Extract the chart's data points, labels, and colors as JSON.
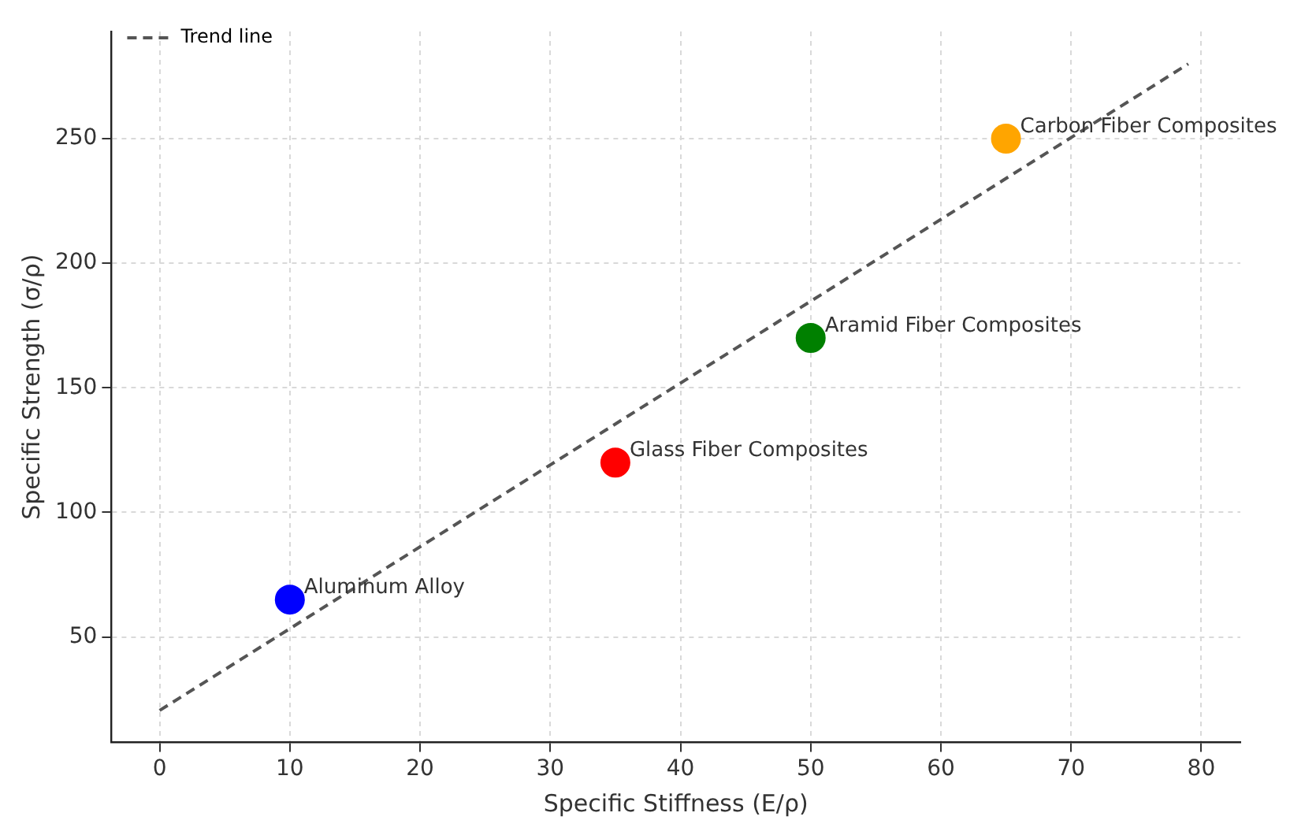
{
  "chart_data": {
    "type": "scatter",
    "xlabel": "Specific Stiffness (E/ρ)",
    "ylabel": "Specific Strength (σ/ρ)",
    "xlim": [
      -3.7,
      83
    ],
    "ylim": [
      7.7,
      293
    ],
    "xticks": [
      0,
      10,
      20,
      30,
      40,
      50,
      60,
      70,
      80
    ],
    "yticks": [
      50,
      100,
      150,
      200,
      250
    ],
    "grid": true,
    "legend": "top left",
    "series": [
      {
        "type": "scatter",
        "x": [
          10,
          35,
          50,
          65
        ],
        "values": [
          65,
          120,
          170,
          250
        ],
        "colors": [
          "#0000ff",
          "#ff0000",
          "#008000",
          "#ffa500"
        ],
        "marker": "circle"
      },
      {
        "type": "line",
        "name": "Trend line",
        "x": [
          0,
          79
        ],
        "values": [
          20.5,
          280
        ],
        "color": "#555555",
        "line_style": "dashed",
        "marker": "none"
      }
    ],
    "annotations": [
      {
        "text": "Aluminum Alloy",
        "x": 10,
        "y": 65
      },
      {
        "text": "Glass Fiber Composites",
        "x": 35,
        "y": 120
      },
      {
        "text": "Aramid Fiber Composites",
        "x": 50,
        "y": 170
      },
      {
        "text": "Carbon Fiber Composites",
        "x": 65,
        "y": 250
      }
    ]
  }
}
